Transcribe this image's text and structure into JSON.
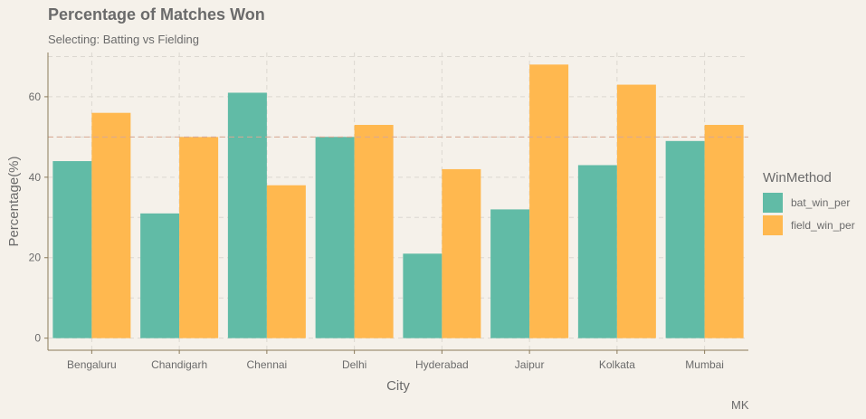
{
  "title": "Percentage of Matches Won",
  "subtitle": "Selecting: Batting vs Fielding",
  "caption": "MK",
  "colors": {
    "background": "#f5f1ea",
    "bat_win_per": "#61bba6",
    "field_win_per": "#ffb84f",
    "grid": "#dcd8d1",
    "reference_line": "#d9a892",
    "axis": "#8a7a5a",
    "text": "#6b6b6b"
  },
  "chart_data": {
    "type": "bar",
    "xlabel": "City",
    "ylabel": "Percentage(%)",
    "ylim": [
      -3,
      71
    ],
    "yticks": [
      0,
      20,
      40,
      60
    ],
    "categories": [
      "Bengaluru",
      "Chandigarh",
      "Chennai",
      "Delhi",
      "Hyderabad",
      "Jaipur",
      "Kolkata",
      "Mumbai"
    ],
    "series": [
      {
        "name": "bat_win_per",
        "values": [
          44,
          31,
          61,
          50,
          21,
          32,
          43,
          49
        ]
      },
      {
        "name": "field_win_per",
        "values": [
          56,
          50,
          38,
          53,
          42,
          68,
          63,
          53
        ]
      }
    ],
    "reference_line": 50,
    "legend_title": "WinMethod",
    "legend_position": "right",
    "grid": true
  }
}
